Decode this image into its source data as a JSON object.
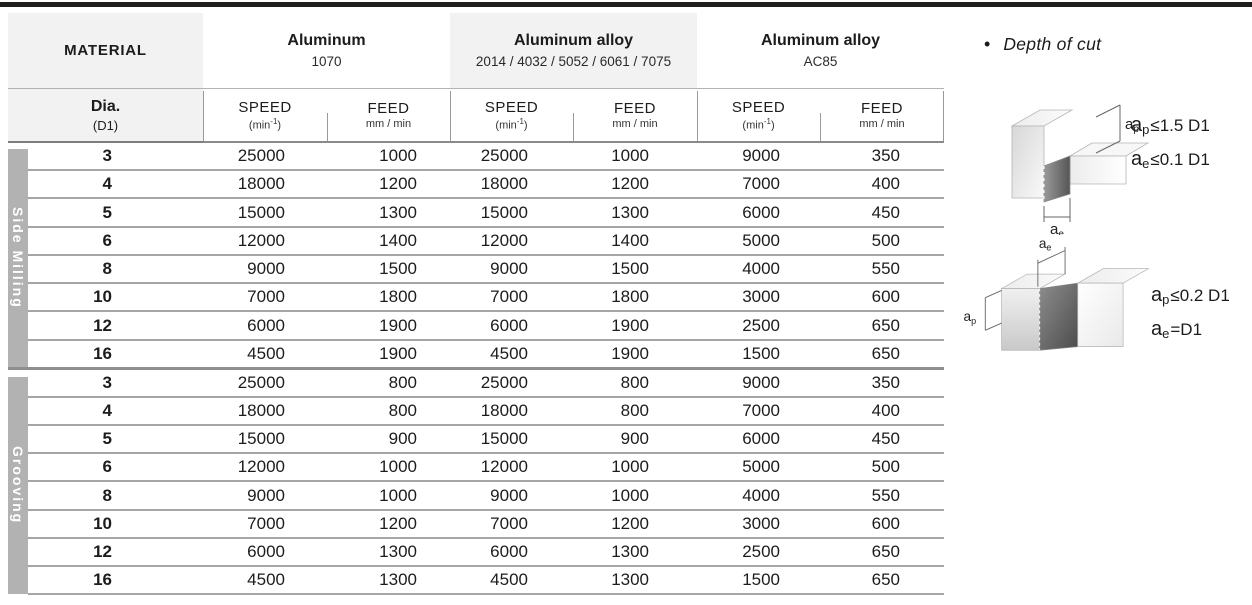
{
  "header": {
    "material_label": "MATERIAL",
    "dia": {
      "label": "Dia.",
      "sub": "(D1)"
    },
    "materials": [
      {
        "name": "Aluminum",
        "sub": "1070",
        "shaded": false
      },
      {
        "name": "Aluminum alloy",
        "sub": "2014 / 4032 / 5052 / 6061 / 7075",
        "shaded": true
      },
      {
        "name": "Aluminum alloy",
        "sub": "AC85",
        "shaded": false
      }
    ],
    "col_speed": {
      "label": "SPEED",
      "unit_pre": "(min",
      "unit_sup": "-1",
      "unit_post": ")"
    },
    "col_feed": {
      "label": "FEED",
      "unit": "mm / min"
    }
  },
  "table": {
    "value_columns": [
      "speed-1070",
      "feed-1070",
      "speed-alloy",
      "feed-alloy",
      "speed-ac85",
      "feed-ac85"
    ],
    "sections": [
      {
        "label": "Side Milling",
        "rows": [
          {
            "dia": "3",
            "values": [
              "25000",
              "1000",
              "25000",
              "1000",
              "9000",
              "350"
            ]
          },
          {
            "dia": "4",
            "values": [
              "18000",
              "1200",
              "18000",
              "1200",
              "7000",
              "400"
            ]
          },
          {
            "dia": "5",
            "values": [
              "15000",
              "1300",
              "15000",
              "1300",
              "6000",
              "450"
            ]
          },
          {
            "dia": "6",
            "values": [
              "12000",
              "1400",
              "12000",
              "1400",
              "5000",
              "500"
            ]
          },
          {
            "dia": "8",
            "values": [
              "9000",
              "1500",
              "9000",
              "1500",
              "4000",
              "550"
            ]
          },
          {
            "dia": "10",
            "values": [
              "7000",
              "1800",
              "7000",
              "1800",
              "3000",
              "600"
            ]
          },
          {
            "dia": "12",
            "values": [
              "6000",
              "1900",
              "6000",
              "1900",
              "2500",
              "650"
            ]
          },
          {
            "dia": "16",
            "values": [
              "4500",
              "1900",
              "4500",
              "1900",
              "1500",
              "650"
            ]
          }
        ]
      },
      {
        "label": "Grooving",
        "rows": [
          {
            "dia": "3",
            "values": [
              "25000",
              "800",
              "25000",
              "800",
              "9000",
              "350"
            ]
          },
          {
            "dia": "4",
            "values": [
              "18000",
              "800",
              "18000",
              "800",
              "7000",
              "400"
            ]
          },
          {
            "dia": "5",
            "values": [
              "15000",
              "900",
              "15000",
              "900",
              "6000",
              "450"
            ]
          },
          {
            "dia": "6",
            "values": [
              "12000",
              "1000",
              "12000",
              "1000",
              "5000",
              "500"
            ]
          },
          {
            "dia": "8",
            "values": [
              "9000",
              "1000",
              "9000",
              "1000",
              "4000",
              "550"
            ]
          },
          {
            "dia": "10",
            "values": [
              "7000",
              "1200",
              "7000",
              "1200",
              "3000",
              "600"
            ]
          },
          {
            "dia": "12",
            "values": [
              "6000",
              "1300",
              "6000",
              "1300",
              "2500",
              "650"
            ]
          },
          {
            "dia": "16",
            "values": [
              "4500",
              "1300",
              "4500",
              "1300",
              "1500",
              "650"
            ]
          }
        ]
      }
    ]
  },
  "depth_of_cut": {
    "bullet": "•",
    "title": "Depth of cut",
    "side_milling": {
      "ap_label": {
        "base": "a",
        "sub": "p"
      },
      "ae_label": {
        "base": "a",
        "sub": "e"
      },
      "formula_ap": {
        "base": "a",
        "sub": "p",
        "rest": "≤1.5 D1"
      },
      "formula_ae": {
        "base": "a",
        "sub": "e",
        "rest": "≤0.1 D1"
      }
    },
    "grooving": {
      "ap_label": {
        "base": "a",
        "sub": "p"
      },
      "ae_label": {
        "base": "a",
        "sub": "e"
      },
      "formula_ap": {
        "base": "a",
        "sub": "p",
        "rest": "≤0.2 D1"
      },
      "formula_ae": {
        "base": "a",
        "sub": "e",
        "rest": "=D1"
      }
    }
  },
  "colors": {
    "top_rule": "#201d1d",
    "header_shade": "#f2f2f2",
    "section_bar": "#b2b2b2",
    "row_line": "#a5a5a5",
    "section_line": "#8f8f8f"
  }
}
